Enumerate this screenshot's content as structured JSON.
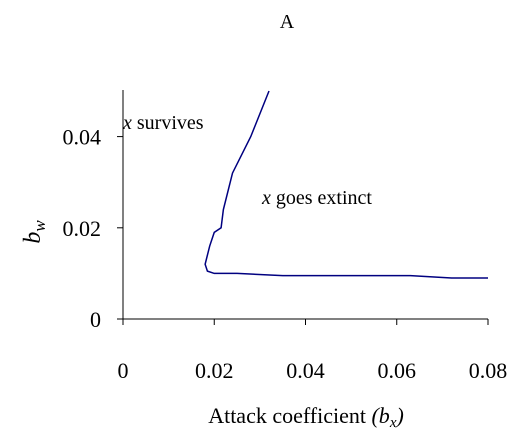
{
  "chart_data": {
    "type": "line",
    "title": "A",
    "xlabel": {
      "text": "Attack coefficient",
      "var": "(b",
      "sub": "x",
      "close": ")"
    },
    "ylabel": {
      "var": "b",
      "sub": "w"
    },
    "annotations": [
      {
        "var": "x",
        "text": "survives"
      },
      {
        "var": "x",
        "text": "goes extinct"
      }
    ],
    "x": [
      0.032,
      0.028,
      0.024,
      0.022,
      0.0215,
      0.02,
      0.019,
      0.018,
      0.0185,
      0.02,
      0.025,
      0.035,
      0.063,
      0.072,
      0.08
    ],
    "series": [
      {
        "color": "#000080",
        "values": [
          0.05,
          0.04,
          0.032,
          0.024,
          0.02,
          0.019,
          0.016,
          0.012,
          0.0105,
          0.01,
          0.01,
          0.0095,
          0.0095,
          0.009,
          0.009
        ]
      }
    ],
    "xlim": [
      0,
      0.08
    ],
    "xticks": [
      0,
      0.02,
      0.04,
      0.06,
      0.08
    ],
    "ylim": [
      0,
      0.05
    ],
    "yticks": [
      0,
      0.02,
      0.04
    ],
    "grid": false
  }
}
